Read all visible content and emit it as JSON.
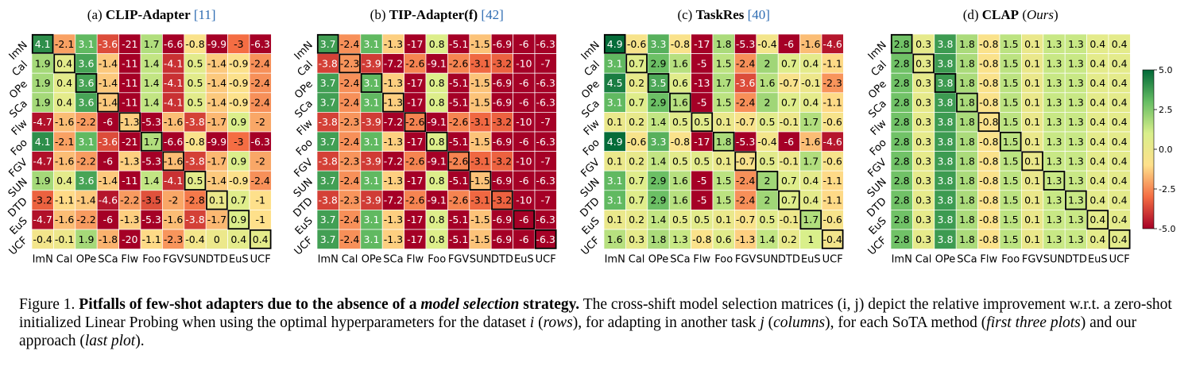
{
  "labels": [
    "ImN",
    "Cal",
    "OPe",
    "SCa",
    "Flw",
    "Foo",
    "FGV",
    "SUN",
    "DTD",
    "EuS",
    "UCF"
  ],
  "colorbar": {
    "min": -5.0,
    "max": 5.0,
    "ticks": [
      "5.0",
      "2.5",
      "0.0",
      "-2.5",
      "-5.0"
    ],
    "colors": [
      "#a50026",
      "#f46d43",
      "#fee08b",
      "#d9ef8b",
      "#66bd63",
      "#006837"
    ]
  },
  "titles": [
    {
      "letter": "(a) ",
      "name": "CLIP-Adapter",
      "ital": "",
      "ref": "[11]"
    },
    {
      "letter": "(b) ",
      "name": "TIP-Adapter(f)",
      "ital": "",
      "ref": "[42]"
    },
    {
      "letter": "(c) ",
      "name": "TaskRes",
      "ital": "",
      "ref": "[40]"
    },
    {
      "letter": "(d) ",
      "name": "CLAP",
      "ital": "Ours",
      "ref": ""
    }
  ],
  "chart_data": [
    {
      "type": "heatmap",
      "title": "(a) CLIP-Adapter [11]",
      "values": [
        [
          4.1,
          -2.1,
          3.1,
          -3.6,
          -21,
          1.7,
          -6.6,
          -0.8,
          -9.9,
          -3,
          -6.3
        ],
        [
          1.9,
          0.4,
          3.6,
          -1.4,
          -11,
          1.4,
          -4.1,
          0.5,
          -1.4,
          -0.9,
          -2.4
        ],
        [
          1.9,
          0.4,
          3.6,
          -1.4,
          -11,
          1.4,
          -4.1,
          0.5,
          -1.4,
          -0.9,
          -2.4
        ],
        [
          1.9,
          0.4,
          3.6,
          -1.4,
          -11,
          1.4,
          -4.1,
          0.5,
          -1.4,
          -0.9,
          -2.4
        ],
        [
          -4.7,
          -1.6,
          -2.2,
          -6,
          -1.3,
          -5.3,
          -1.6,
          -3.8,
          -1.7,
          0.9,
          -2
        ],
        [
          4.1,
          -2.1,
          3.1,
          -3.6,
          -21,
          1.7,
          -6.6,
          -0.8,
          -9.9,
          -3,
          -6.3
        ],
        [
          -4.7,
          -1.6,
          -2.2,
          -6,
          -1.3,
          -5.3,
          -1.6,
          -3.8,
          -1.7,
          0.9,
          -2
        ],
        [
          1.9,
          0.4,
          3.6,
          -1.4,
          -11,
          1.4,
          -4.1,
          0.5,
          -1.4,
          -0.9,
          -2.4
        ],
        [
          -3.2,
          -1.1,
          -1.4,
          -4.6,
          -2.2,
          -3.5,
          -2,
          -2.8,
          0.1,
          0.7,
          -1
        ],
        [
          -4.7,
          -1.6,
          -2.2,
          -6,
          -1.3,
          -5.3,
          -1.6,
          -3.8,
          -1.7,
          0.9,
          -1
        ],
        [
          -0.4,
          -0.1,
          1.9,
          -1.8,
          -20,
          -1.1,
          -2.3,
          -0.4,
          0,
          0.4,
          0.4
        ]
      ]
    },
    {
      "type": "heatmap",
      "title": "(b) TIP-Adapter(f) [42]",
      "values": [
        [
          3.7,
          -2.4,
          3.1,
          -1.3,
          -17,
          0.8,
          -5.1,
          -1.5,
          -6.9,
          -6,
          -6.3
        ],
        [
          -3.8,
          -2.3,
          -3.9,
          -7.2,
          -2.6,
          -9.1,
          -2.6,
          -3.1,
          -3.2,
          -10,
          -7
        ],
        [
          3.7,
          -2.4,
          3.1,
          -1.3,
          -17,
          0.8,
          -5.1,
          -1.5,
          -6.9,
          -6,
          -6.3
        ],
        [
          3.7,
          -2.4,
          3.1,
          -1.3,
          -17,
          0.8,
          -5.1,
          -1.5,
          -6.9,
          -6,
          -6.3
        ],
        [
          -3.8,
          -2.3,
          -3.9,
          -7.2,
          -2.6,
          -9.1,
          -2.6,
          -3.1,
          -3.2,
          -10,
          -7
        ],
        [
          3.7,
          -2.4,
          3.1,
          -1.3,
          -17,
          0.8,
          -5.1,
          -1.5,
          -6.9,
          -6,
          -6.3
        ],
        [
          -3.8,
          -2.3,
          -3.9,
          -7.2,
          -2.6,
          -9.1,
          -2.6,
          -3.1,
          -3.2,
          -10,
          -7
        ],
        [
          3.7,
          -2.4,
          3.1,
          -1.3,
          -17,
          0.8,
          -5.1,
          -1.5,
          -6.9,
          -6,
          -6.3
        ],
        [
          -3.8,
          -2.3,
          -3.9,
          -7.2,
          -2.6,
          -9.1,
          -2.6,
          -3.1,
          -3.2,
          -10,
          -7
        ],
        [
          3.7,
          -2.4,
          3.1,
          -1.3,
          -17,
          0.8,
          -5.1,
          -1.5,
          -6.9,
          -6,
          -6.3
        ],
        [
          3.7,
          -2.4,
          3.1,
          -1.3,
          -17,
          0.8,
          -5.1,
          -1.5,
          -6.9,
          -6,
          -6.3
        ]
      ]
    },
    {
      "type": "heatmap",
      "title": "(c) TaskRes [40]",
      "values": [
        [
          4.9,
          -0.6,
          3.3,
          -0.8,
          -17,
          1.8,
          -5.3,
          -0.4,
          -6,
          -1.6,
          -4.6
        ],
        [
          3.1,
          0.7,
          2.9,
          1.6,
          -5,
          1.5,
          -2.4,
          2,
          0.7,
          0.4,
          -1.1
        ],
        [
          4.5,
          0.2,
          3.5,
          0.6,
          -13,
          1.7,
          -3.6,
          1.6,
          -0.7,
          -0.1,
          -2.3
        ],
        [
          3.1,
          0.7,
          2.9,
          1.6,
          -5,
          1.5,
          -2.4,
          2,
          0.7,
          0.4,
          -1.1
        ],
        [
          0.1,
          0.2,
          1.4,
          0.5,
          0.5,
          0.1,
          -0.7,
          0.5,
          -0.1,
          1.7,
          -0.6
        ],
        [
          4.9,
          -0.6,
          3.3,
          -0.8,
          -17,
          1.8,
          -5.3,
          -0.4,
          -6,
          -1.6,
          -4.6
        ],
        [
          0.1,
          0.2,
          1.4,
          0.5,
          0.5,
          0.1,
          -0.7,
          0.5,
          -0.1,
          1.7,
          -0.6
        ],
        [
          3.1,
          0.7,
          2.9,
          1.6,
          -5,
          1.5,
          -2.4,
          2,
          0.7,
          0.4,
          -1.1
        ],
        [
          3.1,
          0.7,
          2.9,
          1.6,
          -5,
          1.5,
          -2.4,
          2,
          0.7,
          0.4,
          -1.1
        ],
        [
          0.1,
          0.2,
          1.4,
          0.5,
          0.5,
          0.1,
          -0.7,
          0.5,
          -0.1,
          1.7,
          -0.6
        ],
        [
          1.6,
          0.3,
          1.8,
          1.3,
          -0.8,
          0.6,
          -1.3,
          1.4,
          0.2,
          1,
          -0.4
        ]
      ]
    },
    {
      "type": "heatmap",
      "title": "(d) CLAP (Ours)",
      "values": [
        [
          2.8,
          0.3,
          3.8,
          1.8,
          -0.8,
          1.5,
          0.1,
          1.3,
          1.3,
          0.4,
          0.4
        ],
        [
          2.8,
          0.3,
          3.8,
          1.8,
          -0.8,
          1.5,
          0.1,
          1.3,
          1.3,
          0.4,
          0.4
        ],
        [
          2.8,
          0.3,
          3.8,
          1.8,
          -0.8,
          1.5,
          0.1,
          1.3,
          1.3,
          0.4,
          0.4
        ],
        [
          2.8,
          0.3,
          3.8,
          1.8,
          -0.8,
          1.5,
          0.1,
          1.3,
          1.3,
          0.4,
          0.4
        ],
        [
          2.8,
          0.3,
          3.8,
          1.8,
          -0.8,
          1.5,
          0.1,
          1.3,
          1.3,
          0.4,
          0.4
        ],
        [
          2.8,
          0.3,
          3.8,
          1.8,
          -0.8,
          1.5,
          0.1,
          1.3,
          1.3,
          0.4,
          0.4
        ],
        [
          2.8,
          0.3,
          3.8,
          1.8,
          -0.8,
          1.5,
          0.1,
          1.3,
          1.3,
          0.4,
          0.4
        ],
        [
          2.8,
          0.3,
          3.8,
          1.8,
          -0.8,
          1.5,
          0.1,
          1.3,
          1.3,
          0.4,
          0.4
        ],
        [
          2.8,
          0.3,
          3.8,
          1.8,
          -0.8,
          1.5,
          0.1,
          1.3,
          1.3,
          0.4,
          0.4
        ],
        [
          2.8,
          0.3,
          3.8,
          1.8,
          -0.8,
          1.5,
          0.1,
          1.3,
          1.3,
          0.4,
          0.4
        ],
        [
          2.8,
          0.3,
          3.8,
          1.8,
          -0.8,
          1.5,
          0.1,
          1.3,
          1.3,
          0.4,
          0.4
        ]
      ]
    }
  ],
  "caption": {
    "label": "Figure 1.",
    "title_a": "Pitfalls of few-shot adapters due to the absence of a",
    "title_em": "model selection",
    "title_b": "strategy.",
    "body_1": "The cross-shift model selection matrices",
    "ij": "(i, j)",
    "body_2": "depict the relative improvement w.r.t. a zero-shot initialized Linear Probing when using the optimal hyperparameters for the dataset",
    "i": "i",
    "rows": "rows",
    "body_3": ", for adapting in another task",
    "j": "j",
    "columns": "columns",
    "body_4": ", for each SoTA method",
    "first_three": "first three plots",
    "body_5": "and our approach",
    "last_plot": "last plot",
    "end": ")."
  }
}
